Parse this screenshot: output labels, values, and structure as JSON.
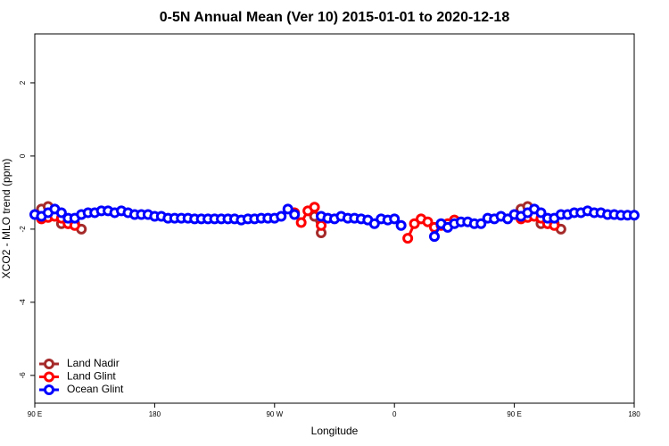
{
  "chart_data": {
    "type": "line",
    "title": "0-5N Annual Mean (Ver 10)   2015-01-01 to 2020-12-18",
    "x_label": "Longitude",
    "y_label": "XCO2 - MLO trend (ppm)",
    "xlim": [
      90,
      540
    ],
    "ylim": [
      -6.76,
      3.34
    ],
    "xticks": [
      {
        "value": 90,
        "label": "90 E"
      },
      180,
      {
        "value": 270,
        "label": "90 W"
      },
      {
        "value": 360,
        "label": "0"
      },
      {
        "value": 450,
        "label": "90 E"
      },
      {
        "value": 540,
        "label": "180"
      }
    ],
    "yticks": [
      2,
      0,
      -2,
      -4,
      -6
    ],
    "legend": "bottom-left",
    "x": [
      90,
      95,
      100,
      105,
      110,
      115,
      120,
      125,
      130,
      135,
      140,
      145,
      150,
      155,
      160,
      165,
      170,
      175,
      180,
      185,
      190,
      195,
      200,
      205,
      210,
      215,
      220,
      225,
      230,
      235,
      240,
      245,
      250,
      255,
      260,
      265,
      270,
      275,
      280,
      285,
      290,
      295,
      300,
      305,
      310,
      315,
      320,
      325,
      330,
      335,
      340,
      345,
      350,
      355,
      360,
      365,
      370,
      375,
      380,
      385,
      390,
      395,
      400,
      405,
      410,
      415,
      420,
      425,
      430,
      435,
      440,
      445,
      450,
      455,
      460,
      465,
      470,
      475,
      480,
      485,
      490,
      495,
      500,
      505,
      510,
      515,
      520,
      525,
      530,
      535,
      540
    ],
    "series": [
      {
        "name": "Land Nadir",
        "color": "#a52a2a",
        "values": [
          null,
          -1.45,
          -1.38,
          -1.5,
          -1.85,
          -1.85,
          -1.85,
          -2.0,
          null,
          null,
          null,
          null,
          null,
          null,
          null,
          null,
          null,
          null,
          null,
          null,
          null,
          null,
          null,
          null,
          null,
          null,
          null,
          null,
          null,
          null,
          null,
          null,
          null,
          null,
          null,
          null,
          null,
          null,
          null,
          null,
          null,
          null,
          -1.65,
          -2.1,
          null,
          null,
          null,
          null,
          null,
          null,
          null,
          null,
          null,
          null,
          null,
          null,
          null,
          null,
          null,
          null,
          null,
          null,
          null,
          null,
          null,
          null,
          null,
          null,
          null,
          null,
          null,
          null,
          null,
          -1.45,
          -1.38,
          -1.5,
          -1.85,
          -1.85,
          -1.85,
          -2.0,
          null,
          null,
          null,
          null,
          null,
          null,
          null,
          null,
          null,
          null,
          null
        ]
      },
      {
        "name": "Land Glint",
        "color": "#ff0000",
        "values": [
          null,
          -1.72,
          -1.68,
          -1.65,
          -1.7,
          -1.85,
          -1.9,
          null,
          null,
          null,
          null,
          null,
          null,
          null,
          null,
          null,
          null,
          null,
          null,
          null,
          null,
          null,
          null,
          null,
          null,
          null,
          null,
          null,
          null,
          null,
          null,
          null,
          null,
          null,
          null,
          null,
          null,
          null,
          null,
          -1.55,
          -1.82,
          -1.5,
          -1.4,
          -1.9,
          null,
          null,
          null,
          null,
          null,
          null,
          null,
          null,
          null,
          null,
          null,
          null,
          -2.25,
          -1.85,
          -1.72,
          -1.8,
          -1.95,
          -1.9,
          -1.85,
          -1.75,
          null,
          null,
          null,
          null,
          null,
          null,
          null,
          null,
          null,
          -1.72,
          -1.68,
          -1.65,
          -1.7,
          -1.85,
          -1.9,
          null,
          null,
          null,
          null,
          null,
          null,
          null,
          null,
          null,
          null,
          null,
          null
        ]
      },
      {
        "name": "Ocean Glint",
        "color": "#0000ff",
        "values": [
          -1.6,
          -1.65,
          -1.55,
          -1.45,
          -1.55,
          -1.7,
          -1.7,
          -1.6,
          -1.55,
          -1.55,
          -1.5,
          -1.5,
          -1.55,
          -1.5,
          -1.55,
          -1.6,
          -1.6,
          -1.6,
          -1.65,
          -1.65,
          -1.7,
          -1.7,
          -1.7,
          -1.7,
          -1.72,
          -1.72,
          -1.72,
          -1.72,
          -1.72,
          -1.72,
          -1.72,
          -1.75,
          -1.72,
          -1.72,
          -1.7,
          -1.7,
          -1.7,
          -1.65,
          -1.45,
          -1.6,
          null,
          null,
          null,
          -1.65,
          -1.7,
          -1.72,
          -1.65,
          -1.7,
          -1.7,
          -1.72,
          -1.75,
          -1.85,
          -1.72,
          -1.75,
          -1.72,
          -1.9,
          null,
          null,
          null,
          null,
          -2.2,
          -1.85,
          -1.95,
          -1.85,
          -1.8,
          -1.8,
          -1.85,
          -1.85,
          -1.7,
          -1.72,
          -1.65,
          -1.72,
          -1.6,
          -1.65,
          -1.55,
          -1.45,
          -1.55,
          -1.7,
          -1.7,
          -1.6,
          -1.6,
          -1.55,
          -1.55,
          -1.5,
          -1.55,
          -1.55,
          -1.6,
          -1.6,
          -1.62,
          -1.62,
          -1.62
        ]
      }
    ]
  }
}
